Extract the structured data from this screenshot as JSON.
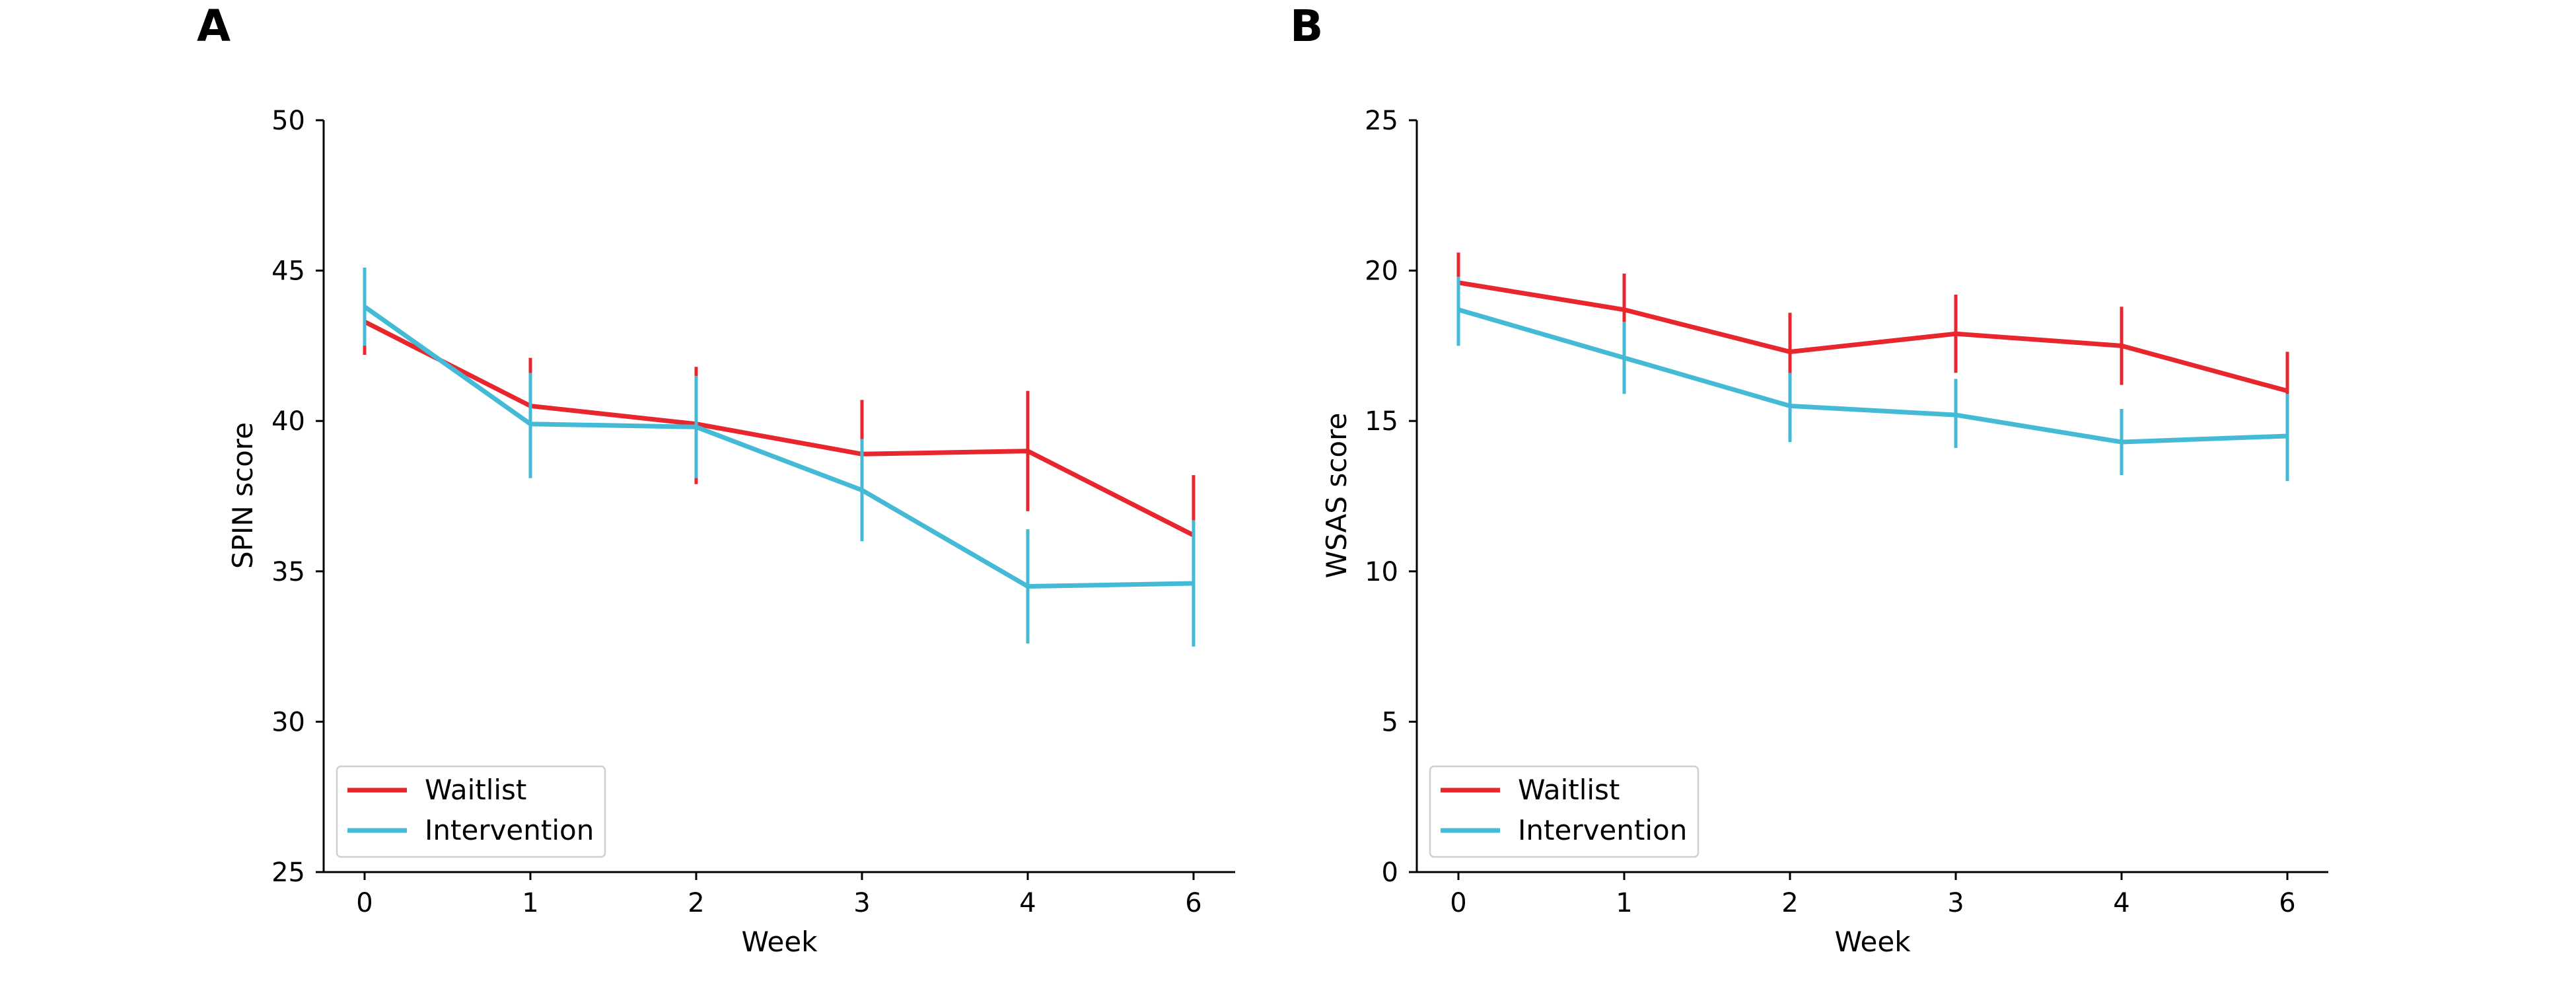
{
  "colors": {
    "waitlist": "#e8262d",
    "intervention": "#45bad6"
  },
  "chart_data": [
    {
      "type": "line",
      "panel_label": "A",
      "xlabel": "Week",
      "ylabel": "SPIN score",
      "categories": [
        "0",
        "1",
        "2",
        "3",
        "4",
        "6"
      ],
      "ylim": [
        25,
        50
      ],
      "yticks": [
        "25",
        "30",
        "35",
        "40",
        "45",
        "50"
      ],
      "legend_position": "lower-left",
      "series": [
        {
          "name": "Waitlist",
          "color": "#e8262d",
          "values": [
            43.3,
            40.5,
            39.9,
            38.9,
            39.0,
            36.2
          ],
          "err_low": [
            42.2,
            38.9,
            37.9,
            37.1,
            37.0,
            34.2
          ],
          "err_high": [
            44.4,
            42.1,
            41.8,
            40.7,
            41.0,
            38.2
          ]
        },
        {
          "name": "Intervention",
          "color": "#45bad6",
          "values": [
            43.8,
            39.9,
            39.8,
            37.7,
            34.5,
            34.6
          ],
          "err_low": [
            42.5,
            38.1,
            38.1,
            36.0,
            32.6,
            32.5
          ],
          "err_high": [
            45.1,
            41.6,
            41.5,
            39.4,
            36.4,
            36.7
          ]
        }
      ]
    },
    {
      "type": "line",
      "panel_label": "B",
      "xlabel": "Week",
      "ylabel": "WSAS score",
      "categories": [
        "0",
        "1",
        "2",
        "3",
        "4",
        "6"
      ],
      "ylim": [
        0,
        25
      ],
      "yticks": [
        "0",
        "5",
        "10",
        "15",
        "20",
        "25"
      ],
      "legend_position": "lower-left",
      "series": [
        {
          "name": "Waitlist",
          "color": "#e8262d",
          "values": [
            19.6,
            18.7,
            17.3,
            17.9,
            17.5,
            16.0
          ],
          "err_low": [
            18.6,
            17.5,
            16.0,
            16.6,
            16.2,
            14.7
          ],
          "err_high": [
            20.6,
            19.9,
            18.6,
            19.2,
            18.8,
            17.3
          ]
        },
        {
          "name": "Intervention",
          "color": "#45bad6",
          "values": [
            18.7,
            17.1,
            15.5,
            15.2,
            14.3,
            14.5
          ],
          "err_low": [
            17.5,
            15.9,
            14.3,
            14.1,
            13.2,
            13.0
          ],
          "err_high": [
            19.8,
            18.3,
            16.6,
            16.4,
            15.4,
            15.9
          ]
        }
      ]
    }
  ]
}
